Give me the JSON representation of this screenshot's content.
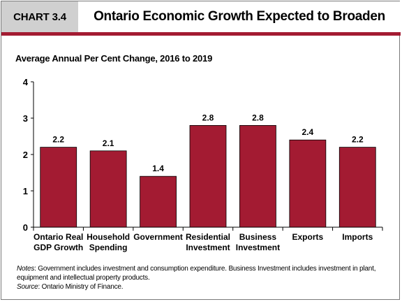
{
  "header": {
    "chart_number": "CHART 3.4",
    "title": "Ontario Economic Growth Expected to Broaden"
  },
  "subtitle": "Average Annual Per Cent Change, 2016 to 2019",
  "colors": {
    "bar": "#a31b32",
    "accent_rule": "#a31b32",
    "label_box": "#d0d0d0"
  },
  "chart_data": {
    "type": "bar",
    "categories": [
      [
        "Ontario Real",
        "GDP Growth"
      ],
      [
        "Household",
        "Spending"
      ],
      [
        "Government"
      ],
      [
        "Residential",
        "Investment"
      ],
      [
        "Business",
        "Investment"
      ],
      [
        "Exports"
      ],
      [
        "Imports"
      ]
    ],
    "values": [
      2.2,
      2.1,
      1.4,
      2.8,
      2.8,
      2.4,
      2.2
    ],
    "data_labels": [
      "2.2",
      "2.1",
      "1.4",
      "2.8",
      "2.8",
      "2.4",
      "2.2"
    ],
    "title": "Ontario Economic Growth Expected to Broaden",
    "ylabel": "Average Annual Per Cent Change, 2016 to 2019",
    "ylim": [
      0,
      4
    ],
    "yticks": [
      "0",
      "1",
      "2",
      "3",
      "4"
    ],
    "grid": false,
    "legend": "none"
  },
  "notes": {
    "notes_label": "Notes",
    "notes_text": ": Government includes investment and consumption expenditure. Business Investment includes investment in plant, equipment and intellectual property products.",
    "source_label": "Source",
    "source_text": ": Ontario Ministry of Finance."
  }
}
